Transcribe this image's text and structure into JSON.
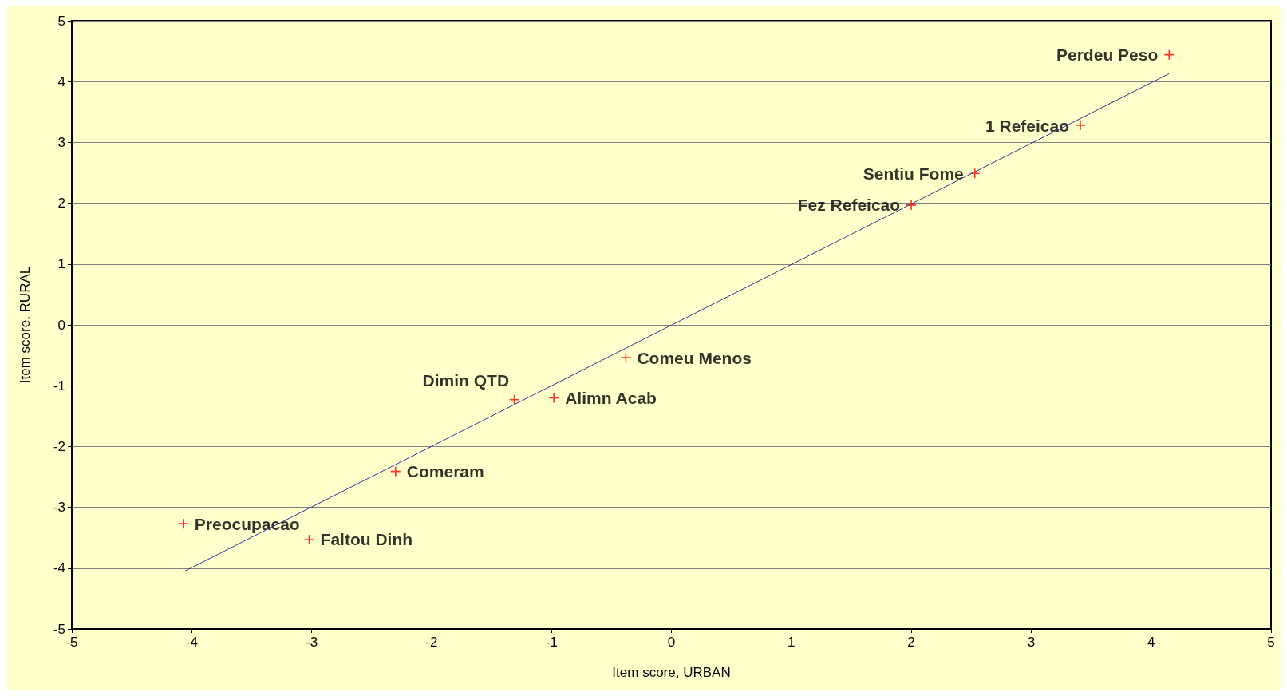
{
  "chart_data": {
    "type": "scatter",
    "xlabel": "Item score, URBAN",
    "ylabel": "Item score, RURAL",
    "series": [
      {
        "color": "#ff0000",
        "x": [
          4.15,
          3.41,
          2.53,
          2.0,
          -0.38,
          -1.31,
          -0.98,
          -2.3,
          -4.07,
          -3.02
        ],
        "values": [
          4.44,
          3.28,
          2.49,
          1.97,
          -0.54,
          -1.23,
          -1.2,
          -2.41,
          -3.27,
          -3.53
        ]
      },
      {
        "type": "line",
        "marker": "none",
        "color": "#333399",
        "x": [
          -4.07,
          4.15
        ],
        "values": [
          -4.06,
          4.13
        ]
      }
    ],
    "annotations": [
      {
        "text": "Perdeu Peso",
        "x": 4.15,
        "y": 4.44
      },
      {
        "text": "1 Refeicao",
        "x": 3.41,
        "y": 3.28
      },
      {
        "text": "Sentiu Fome",
        "x": 2.53,
        "y": 2.49
      },
      {
        "text": "Fez Refeicao",
        "x": 2.0,
        "y": 1.97
      },
      {
        "text": "Comeu Menos",
        "x": -0.38,
        "y": -0.54
      },
      {
        "text": "Dimin QTD",
        "x": -1.31,
        "y": -1.23
      },
      {
        "text": "Alimn Acab",
        "x": -0.98,
        "y": -1.2
      },
      {
        "text": "Comeram",
        "x": -2.3,
        "y": -2.41
      },
      {
        "text": "Preocupacao",
        "x": -4.07,
        "y": -3.27
      },
      {
        "text": "Faltou Dinh",
        "x": -3.02,
        "y": -3.53
      }
    ],
    "xlim": [
      -5,
      5
    ],
    "ylim": [
      -5,
      5
    ],
    "xticks": [
      -5,
      -4,
      -3,
      -2,
      -1,
      0,
      1,
      2,
      3,
      4,
      5
    ],
    "yticks": [
      -5,
      -4,
      -3,
      -2,
      -1,
      0,
      1,
      2,
      3,
      4,
      5
    ],
    "grid": "y",
    "marker": "cross",
    "line_style": "solid"
  }
}
